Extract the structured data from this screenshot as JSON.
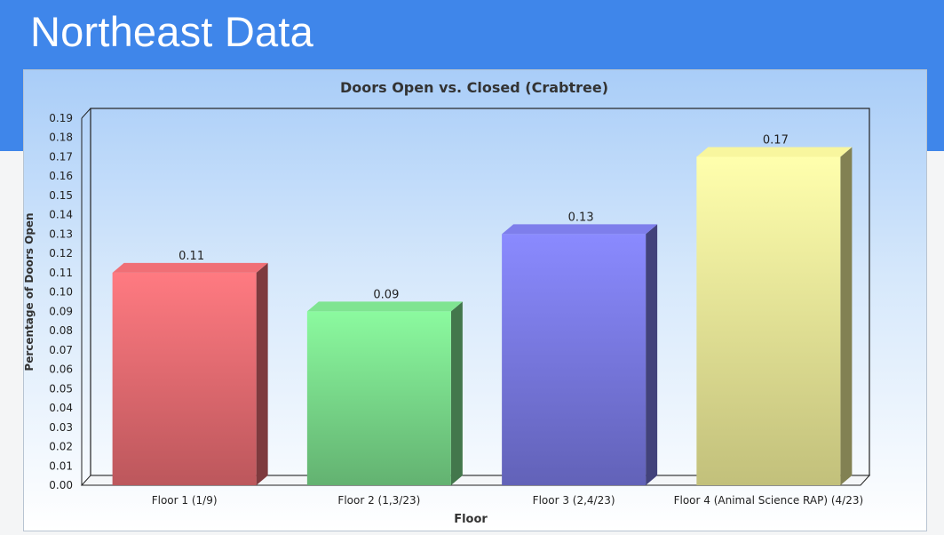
{
  "slide": {
    "title": "Northeast Data",
    "header_color": "#3f86ea"
  },
  "chart_data": {
    "type": "bar",
    "title": "Doors Open vs. Closed (Crabtree)",
    "xlabel": "Floor",
    "ylabel": "Percentage of Doors Open",
    "categories": [
      "Floor 1 (1/9)",
      "Floor 2 (1,3/23)",
      "Floor 3 (2,4/23)",
      "Floor 4 (Animal Science RAP) (4/23)"
    ],
    "values": [
      0.11,
      0.09,
      0.13,
      0.17
    ],
    "data_labels": [
      "0.11",
      "0.09",
      "0.13",
      "0.17"
    ],
    "ylim": [
      0,
      0.19
    ],
    "yticks": [
      "0.00",
      "0.01",
      "0.02",
      "0.03",
      "0.04",
      "0.05",
      "0.06",
      "0.07",
      "0.08",
      "0.09",
      "0.10",
      "0.11",
      "0.12",
      "0.13",
      "0.14",
      "0.15",
      "0.16",
      "0.17",
      "0.18",
      "0.19"
    ],
    "bar_colors": [
      "#e56a70",
      "#79d98a",
      "#7878e0",
      "#ecea96"
    ],
    "grid": false,
    "legend": "none",
    "style": "3d"
  }
}
